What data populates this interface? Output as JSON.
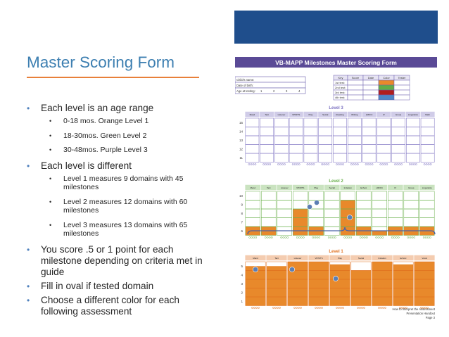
{
  "slide": {
    "title": "Master Scoring Form",
    "bullets": [
      {
        "text": "Each level is an age range",
        "sub": [
          "0-18 mos. Orange Level 1",
          "18-30mos. Green Level 2",
          "30-48mos. Purple Level 3"
        ]
      },
      {
        "text": "Each level is different",
        "sub": [
          "Level 1 measures 9 domains with 45 milestones",
          "Level 2 measures 12 domains with 60 milestones",
          "Level 3 measures 13 domains with 65 milestones"
        ]
      },
      {
        "text": "You score .5 or 1 point for each milestone depending on criteria met in guide",
        "sub": []
      },
      {
        "text": "Fill in oval if tested domain",
        "sub": []
      },
      {
        "text": "Choose a different color for each following assessment",
        "sub": []
      }
    ]
  },
  "scoring_form": {
    "header": "VB-MAPP Milestones Master Scoring Form",
    "child_fields": [
      "Child's name:",
      "Date of birth:",
      "Age at testing:"
    ],
    "age_slots": [
      "1",
      "2",
      "3",
      "4"
    ],
    "key_headers": [
      "Key",
      "Score",
      "Date",
      "Color",
      "Tester"
    ],
    "key_rows": [
      "1st test:",
      "2nd test:",
      "3rd test:",
      "4th test:"
    ],
    "key_colors": [
      "#e8892b",
      "#62ad47",
      "#b01e1e",
      "#4d86c6"
    ],
    "level3": {
      "label": "Level 3",
      "domains": [
        "Mand",
        "Tact",
        "Listener",
        "VP/MTS",
        "Play",
        "Social",
        "Reading",
        "Writing",
        "LRFFC",
        "IV",
        "Group",
        "Linguistics",
        "Math"
      ],
      "row_labels": [
        "15",
        "14",
        "13",
        "12",
        "11"
      ],
      "accent": "#7a6fc0"
    },
    "level2": {
      "label": "Level 2",
      "domains": [
        "Mand",
        "Tact",
        "Listener",
        "VP/MTS",
        "Play",
        "Social",
        "Imitation",
        "Echoic",
        "LRFFC",
        "IV",
        "Group",
        "Linguistics"
      ],
      "row_labels": [
        "10",
        "9",
        "8",
        "7",
        "6"
      ],
      "accent": "#6ab04c"
    },
    "level1": {
      "label": "Level 1",
      "domains": [
        "Mand",
        "Tact",
        "Listener",
        "VP/MTS",
        "Play",
        "Social",
        "Imitation",
        "Echoic",
        "Vocal"
      ],
      "row_labels": [
        "5",
        "4",
        "3",
        "2",
        "1"
      ],
      "accent": "#e0701f"
    },
    "footer": [
      "How to Interpret the Assessment",
      "Presentation Handout",
      "Page 3"
    ]
  }
}
